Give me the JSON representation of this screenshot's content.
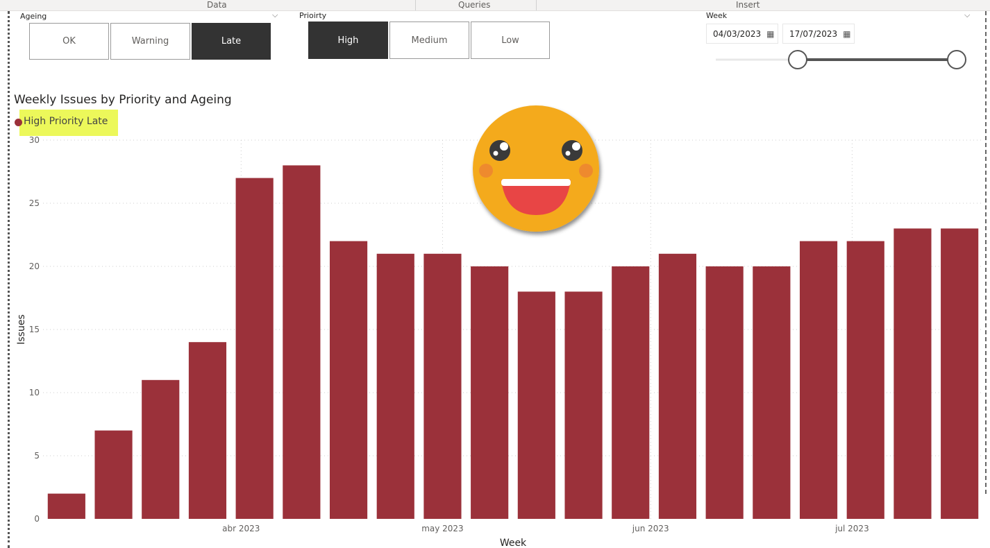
{
  "ribbon": {
    "tabs": [
      "Data",
      "Queries",
      "Insert"
    ]
  },
  "ageing_slicer": {
    "label": "Ageing",
    "options": [
      "OK",
      "Warning",
      "Late"
    ],
    "selected": "Late"
  },
  "priority_slicer": {
    "label": "Prioirty",
    "options": [
      "High",
      "Medium",
      "Low"
    ],
    "selected": "High"
  },
  "week_slicer": {
    "label": "Week",
    "start": "04/03/2023",
    "end": "17/07/2023",
    "icon": "calendar-icon"
  },
  "sticker": {
    "icon": "laughing-face-emoji"
  },
  "chart_data": {
    "type": "bar",
    "title": "Weekly Issues by Priority and Ageing",
    "xlabel": "Week",
    "ylabel": "Issues",
    "ylim": [
      0,
      30
    ],
    "yticks": [
      0,
      5,
      10,
      15,
      20,
      25,
      30
    ],
    "grid": true,
    "legend_placement": "top-left",
    "x_tick_labels": [
      {
        "label": "abr 2023",
        "date": "2023-04-01"
      },
      {
        "label": "may 2023",
        "date": "2023-05-01"
      },
      {
        "label": "jun 2023",
        "date": "2023-06-01"
      },
      {
        "label": "jul 2023",
        "date": "2023-07-01"
      }
    ],
    "categories": [
      "2023-03-06",
      "2023-03-13",
      "2023-03-20",
      "2023-03-27",
      "2023-04-03",
      "2023-04-10",
      "2023-04-17",
      "2023-04-24",
      "2023-05-01",
      "2023-05-08",
      "2023-05-15",
      "2023-05-22",
      "2023-05-29",
      "2023-06-05",
      "2023-06-12",
      "2023-06-19",
      "2023-06-26",
      "2023-07-03",
      "2023-07-10",
      "2023-07-17"
    ],
    "series": [
      {
        "name": "High Priority Late",
        "color": "#9b313a",
        "values": [
          2,
          7,
          11,
          14,
          27,
          28,
          22,
          21,
          21,
          20,
          18,
          18,
          20,
          21,
          20,
          20,
          22,
          22,
          23,
          23
        ]
      }
    ]
  }
}
